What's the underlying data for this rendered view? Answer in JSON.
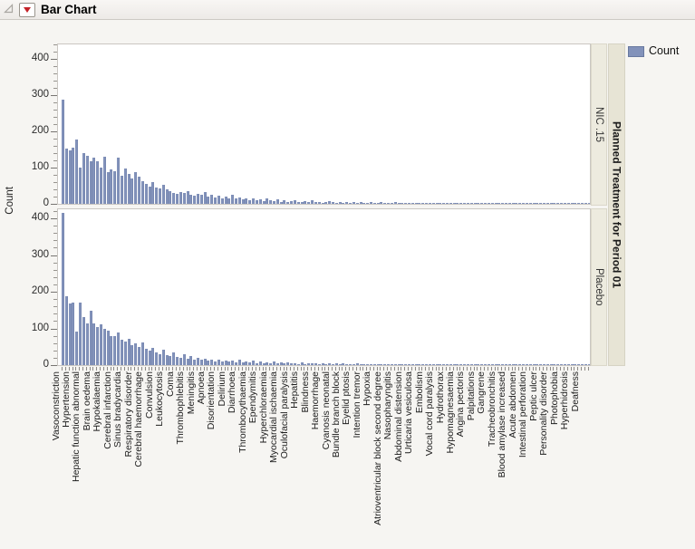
{
  "window": {
    "title": "Bar Chart"
  },
  "legend": {
    "label": "Count",
    "swatch_color": "#8292ba"
  },
  "colors": {
    "bar_fill": "#8292ba",
    "bar_edge": "#6d7fa8",
    "strip_bg": "#edebdf",
    "group_strip_bg": "#e7e4d5",
    "panel_border": "#cac7c2",
    "background": "#f6f5f2"
  },
  "chart_data": {
    "type": "bar",
    "title": "Bar Chart",
    "xlabel": "",
    "ylabel": "Count",
    "group_label": "Planned Treatment for Period 01",
    "ylim": [
      0,
      440
    ],
    "yticks": [
      0,
      100,
      200,
      300,
      400
    ],
    "minor_tick_step": 20,
    "legend_position": "top-right",
    "grid": false,
    "label_every_n_bars": 3,
    "x_tick_labels": [
      "Vasoconstriction",
      "Hypertension",
      "Hepatic function abnormal",
      "Brain oedema",
      "Hypokalaemia",
      "Cerebral infarction",
      "Sinus bradycardia",
      "Respiratory disorder",
      "Cerebral haemorrhage",
      "Convulsion",
      "Leukocytosis",
      "Coma",
      "Thrombophlebitis",
      "Meningitis",
      "Apnoea",
      "Disorientation",
      "Delirium",
      "Diarrhoea",
      "Thrombocythaemia",
      "Ependymitis",
      "Hyperchloraemia",
      "Myocardial ischaemia",
      "Oculofacial paralysis",
      "Hepatitis",
      "Blindness",
      "Haemorrhage",
      "Cyanosis neonatal",
      "Bundle branch block",
      "Eyelid ptosis",
      "Intention tremor",
      "Hypoxia",
      "Atrioventricular block second degree",
      "Nasopharyngitis",
      "Abdominal distension",
      "Urticaria vesiculosa",
      "Embolism",
      "Vocal cord paralysis",
      "Hydrothorax",
      "Hypomagnesaemia",
      "Angina pectoris",
      "Palpitations",
      "Gangrene",
      "Tracheobronchitis",
      "Blood amylase increased",
      "Acute abdomen",
      "Intestinal perforation",
      "Peptic ulcer",
      "Personality disorder",
      "Photophobia",
      "Hyperhidrosis",
      "Deafness"
    ],
    "panels": [
      {
        "name": "NIC .15",
        "values": [
          287,
          152,
          148,
          155,
          178,
          100,
          140,
          133,
          118,
          127,
          117,
          99,
          131,
          88,
          96,
          90,
          128,
          78,
          98,
          82,
          70,
          88,
          75,
          62,
          55,
          48,
          60,
          45,
          42,
          52,
          40,
          35,
          30,
          28,
          33,
          30,
          34,
          26,
          22,
          28,
          24,
          33,
          20,
          26,
          18,
          22,
          16,
          20,
          15,
          24,
          14,
          18,
          12,
          15,
          10,
          14,
          9,
          12,
          8,
          16,
          10,
          7,
          12,
          6,
          9,
          5,
          8,
          11,
          6,
          4,
          7,
          5,
          9,
          4,
          6,
          3,
          5,
          8,
          4,
          3,
          6,
          2,
          5,
          3,
          4,
          2,
          6,
          3,
          2,
          4,
          2,
          3,
          5,
          2,
          3,
          2,
          4,
          2,
          1,
          3,
          2,
          1,
          3,
          1,
          2,
          1,
          3,
          1,
          2,
          1,
          1,
          2,
          1,
          1,
          2,
          1,
          1,
          1,
          2,
          1,
          1,
          1,
          1,
          2,
          1,
          1,
          1,
          1,
          1,
          1,
          2,
          1,
          1,
          1,
          1,
          1,
          1,
          1,
          1,
          1,
          1,
          1,
          1,
          1,
          1,
          1,
          1,
          1,
          1,
          1,
          1,
          1,
          1
        ]
      },
      {
        "name": "Placebo",
        "values": [
          414,
          187,
          168,
          170,
          92,
          170,
          131,
          114,
          148,
          114,
          105,
          112,
          100,
          95,
          80,
          78,
          88,
          70,
          65,
          72,
          55,
          60,
          50,
          62,
          45,
          40,
          48,
          35,
          30,
          42,
          28,
          25,
          35,
          22,
          20,
          30,
          18,
          24,
          16,
          20,
          14,
          18,
          12,
          15,
          11,
          16,
          10,
          13,
          9,
          12,
          8,
          14,
          8,
          10,
          7,
          12,
          6,
          9,
          6,
          8,
          5,
          10,
          5,
          7,
          4,
          8,
          4,
          6,
          3,
          7,
          3,
          5,
          4,
          6,
          3,
          5,
          2,
          4,
          3,
          5,
          2,
          4,
          2,
          3,
          2,
          4,
          2,
          3,
          1,
          3,
          2,
          3,
          1,
          2,
          2,
          3,
          1,
          2,
          1,
          2,
          1,
          2,
          1,
          2,
          1,
          1,
          2,
          1,
          1,
          2,
          1,
          1,
          1,
          2,
          1,
          1,
          1,
          1,
          1,
          1,
          1,
          1,
          1,
          1,
          1,
          1,
          1,
          1,
          1,
          1,
          1,
          1,
          1,
          1,
          1,
          1,
          1,
          1,
          1,
          1,
          1,
          1,
          1,
          1,
          1,
          1,
          1,
          1,
          1,
          1,
          1,
          1,
          1
        ]
      }
    ]
  }
}
